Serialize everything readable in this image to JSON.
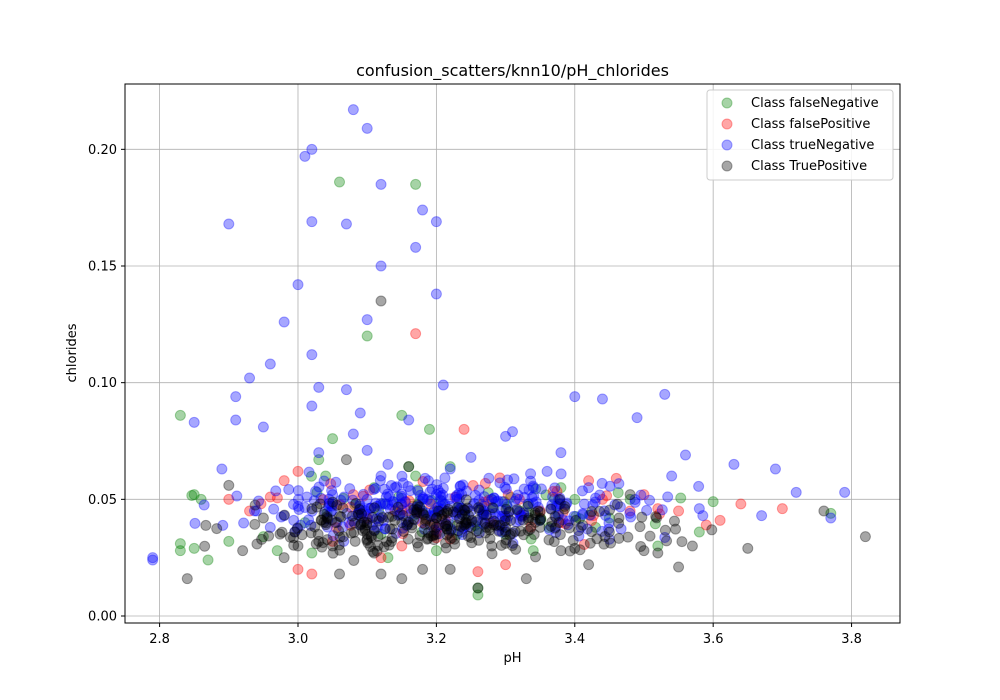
{
  "chart_data": {
    "type": "scatter",
    "title": "confusion_scatters/knn10/pH_chlorides",
    "xlabel": "pH",
    "ylabel": "chlorides",
    "xlim": [
      2.75,
      3.87
    ],
    "ylim": [
      -0.003,
      0.228
    ],
    "xticks": [
      "2.8",
      "3.0",
      "3.2",
      "3.4",
      "3.6",
      "3.8"
    ],
    "yticks": [
      "0.00",
      "0.05",
      "0.10",
      "0.15",
      "0.20"
    ],
    "grid": true,
    "legend_position": "top-right",
    "series": [
      {
        "name": "Class falseNegative",
        "color": "#008000",
        "points": [
          [
            2.83,
            0.086
          ],
          [
            2.83,
            0.031
          ],
          [
            2.83,
            0.028
          ],
          [
            2.85,
            0.052
          ],
          [
            2.85,
            0.029
          ],
          [
            2.86,
            0.05
          ],
          [
            2.87,
            0.024
          ],
          [
            2.9,
            0.032
          ],
          [
            2.95,
            0.034
          ],
          [
            2.97,
            0.028
          ],
          [
            3.01,
            0.04
          ],
          [
            3.02,
            0.027
          ],
          [
            3.03,
            0.067
          ],
          [
            3.04,
            0.06
          ],
          [
            3.05,
            0.076
          ],
          [
            3.06,
            0.186
          ],
          [
            3.1,
            0.12
          ],
          [
            3.11,
            0.055
          ],
          [
            3.12,
            0.035
          ],
          [
            3.13,
            0.025
          ],
          [
            3.15,
            0.086
          ],
          [
            3.16,
            0.064
          ],
          [
            3.17,
            0.185
          ],
          [
            3.17,
            0.06
          ],
          [
            3.18,
            0.045
          ],
          [
            3.19,
            0.08
          ],
          [
            3.2,
            0.028
          ],
          [
            3.22,
            0.064
          ],
          [
            3.23,
            0.035
          ],
          [
            3.26,
            0.012
          ],
          [
            3.26,
            0.009
          ],
          [
            3.28,
            0.05
          ],
          [
            3.3,
            0.035
          ],
          [
            3.32,
            0.045
          ],
          [
            3.34,
            0.028
          ],
          [
            3.35,
            0.041
          ],
          [
            3.38,
            0.055
          ],
          [
            3.4,
            0.05
          ],
          [
            3.43,
            0.038
          ],
          [
            3.45,
            0.042
          ],
          [
            3.48,
            0.05
          ],
          [
            3.52,
            0.03
          ],
          [
            3.58,
            0.036
          ],
          [
            3.6,
            0.049
          ],
          [
            3.77,
            0.044
          ]
        ]
      },
      {
        "name": "Class falsePositive",
        "color": "#ff0000",
        "points": [
          [
            2.9,
            0.05
          ],
          [
            2.93,
            0.045
          ],
          [
            2.96,
            0.051
          ],
          [
            2.98,
            0.058
          ],
          [
            3.0,
            0.02
          ],
          [
            3.0,
            0.062
          ],
          [
            3.02,
            0.018
          ],
          [
            3.05,
            0.032
          ],
          [
            3.08,
            0.052
          ],
          [
            3.1,
            0.042
          ],
          [
            3.12,
            0.025
          ],
          [
            3.14,
            0.045
          ],
          [
            3.15,
            0.03
          ],
          [
            3.17,
            0.121
          ],
          [
            3.18,
            0.04
          ],
          [
            3.2,
            0.036
          ],
          [
            3.22,
            0.033
          ],
          [
            3.24,
            0.08
          ],
          [
            3.26,
            0.019
          ],
          [
            3.28,
            0.04
          ],
          [
            3.3,
            0.022
          ],
          [
            3.32,
            0.05
          ],
          [
            3.35,
            0.045
          ],
          [
            3.38,
            0.04
          ],
          [
            3.42,
            0.058
          ],
          [
            3.44,
            0.05
          ],
          [
            3.46,
            0.059
          ],
          [
            3.48,
            0.045
          ],
          [
            3.5,
            0.052
          ],
          [
            3.52,
            0.046
          ],
          [
            3.55,
            0.045
          ],
          [
            3.59,
            0.039
          ],
          [
            3.61,
            0.041
          ],
          [
            3.64,
            0.048
          ],
          [
            3.7,
            0.046
          ]
        ]
      },
      {
        "name": "Class trueNegative",
        "color": "#0000ff",
        "points": [
          [
            2.79,
            0.024
          ],
          [
            2.79,
            0.025
          ],
          [
            2.85,
            0.083
          ],
          [
            2.89,
            0.063
          ],
          [
            2.9,
            0.168
          ],
          [
            2.91,
            0.094
          ],
          [
            2.91,
            0.084
          ],
          [
            2.93,
            0.102
          ],
          [
            2.94,
            0.045
          ],
          [
            2.95,
            0.081
          ],
          [
            2.96,
            0.108
          ],
          [
            2.98,
            0.126
          ],
          [
            3.0,
            0.142
          ],
          [
            3.01,
            0.197
          ],
          [
            3.02,
            0.2
          ],
          [
            3.02,
            0.169
          ],
          [
            3.02,
            0.112
          ],
          [
            3.02,
            0.09
          ],
          [
            3.03,
            0.098
          ],
          [
            3.03,
            0.07
          ],
          [
            3.05,
            0.048
          ],
          [
            3.07,
            0.168
          ],
          [
            3.07,
            0.097
          ],
          [
            3.08,
            0.217
          ],
          [
            3.08,
            0.078
          ],
          [
            3.09,
            0.087
          ],
          [
            3.1,
            0.209
          ],
          [
            3.1,
            0.127
          ],
          [
            3.1,
            0.071
          ],
          [
            3.12,
            0.185
          ],
          [
            3.12,
            0.15
          ],
          [
            3.13,
            0.065
          ],
          [
            3.16,
            0.084
          ],
          [
            3.17,
            0.158
          ],
          [
            3.18,
            0.174
          ],
          [
            3.2,
            0.169
          ],
          [
            3.2,
            0.138
          ],
          [
            3.21,
            0.099
          ],
          [
            3.22,
            0.063
          ],
          [
            3.25,
            0.068
          ],
          [
            3.3,
            0.077
          ],
          [
            3.31,
            0.079
          ],
          [
            3.34,
            0.055
          ],
          [
            3.36,
            0.062
          ],
          [
            3.38,
            0.07
          ],
          [
            3.4,
            0.094
          ],
          [
            3.42,
            0.055
          ],
          [
            3.44,
            0.093
          ],
          [
            3.49,
            0.085
          ],
          [
            3.53,
            0.095
          ],
          [
            3.54,
            0.06
          ],
          [
            3.56,
            0.069
          ],
          [
            3.58,
            0.046
          ],
          [
            3.63,
            0.065
          ],
          [
            3.67,
            0.043
          ],
          [
            3.69,
            0.063
          ],
          [
            3.72,
            0.053
          ],
          [
            3.77,
            0.042
          ],
          [
            3.79,
            0.053
          ],
          [
            3.1,
            0.05
          ],
          [
            3.12,
            0.06
          ],
          [
            3.14,
            0.055
          ],
          [
            3.15,
            0.048
          ],
          [
            3.18,
            0.05
          ],
          [
            3.2,
            0.052
          ],
          [
            3.22,
            0.047
          ],
          [
            3.25,
            0.045
          ],
          [
            3.28,
            0.05
          ],
          [
            3.05,
            0.052
          ],
          [
            3.0,
            0.047
          ],
          [
            2.98,
            0.043
          ],
          [
            2.96,
            0.038
          ]
        ]
      },
      {
        "name": "Class TruePositive",
        "color": "#000000",
        "points": [
          [
            2.84,
            0.016
          ],
          [
            2.9,
            0.056
          ],
          [
            2.92,
            0.028
          ],
          [
            2.95,
            0.042
          ],
          [
            2.98,
            0.025
          ],
          [
            3.0,
            0.03
          ],
          [
            3.03,
            0.032
          ],
          [
            3.06,
            0.018
          ],
          [
            3.07,
            0.067
          ],
          [
            3.1,
            0.04
          ],
          [
            3.12,
            0.135
          ],
          [
            3.12,
            0.018
          ],
          [
            3.15,
            0.016
          ],
          [
            3.16,
            0.064
          ],
          [
            3.18,
            0.02
          ],
          [
            3.2,
            0.035
          ],
          [
            3.22,
            0.02
          ],
          [
            3.26,
            0.012
          ],
          [
            3.28,
            0.03
          ],
          [
            3.3,
            0.038
          ],
          [
            3.33,
            0.016
          ],
          [
            3.35,
            0.038
          ],
          [
            3.38,
            0.028
          ],
          [
            3.4,
            0.029
          ],
          [
            3.42,
            0.022
          ],
          [
            3.45,
            0.036
          ],
          [
            3.48,
            0.052
          ],
          [
            3.5,
            0.028
          ],
          [
            3.52,
            0.027
          ],
          [
            3.55,
            0.021
          ],
          [
            3.57,
            0.03
          ],
          [
            3.65,
            0.029
          ],
          [
            3.76,
            0.045
          ],
          [
            3.82,
            0.034
          ],
          [
            3.15,
            0.04
          ],
          [
            3.2,
            0.042
          ],
          [
            3.25,
            0.038
          ],
          [
            3.3,
            0.036
          ],
          [
            3.1,
            0.035
          ],
          [
            3.05,
            0.03
          ]
        ]
      }
    ],
    "cluster": {
      "x_range": [
        2.9,
        3.55
      ],
      "y_center": 0.044,
      "y_spread": 0.011,
      "counts": {
        "Class falseNegative": 45,
        "Class falsePositive": 40,
        "Class trueNegative": 320,
        "Class TruePositive": 260
      }
    }
  }
}
